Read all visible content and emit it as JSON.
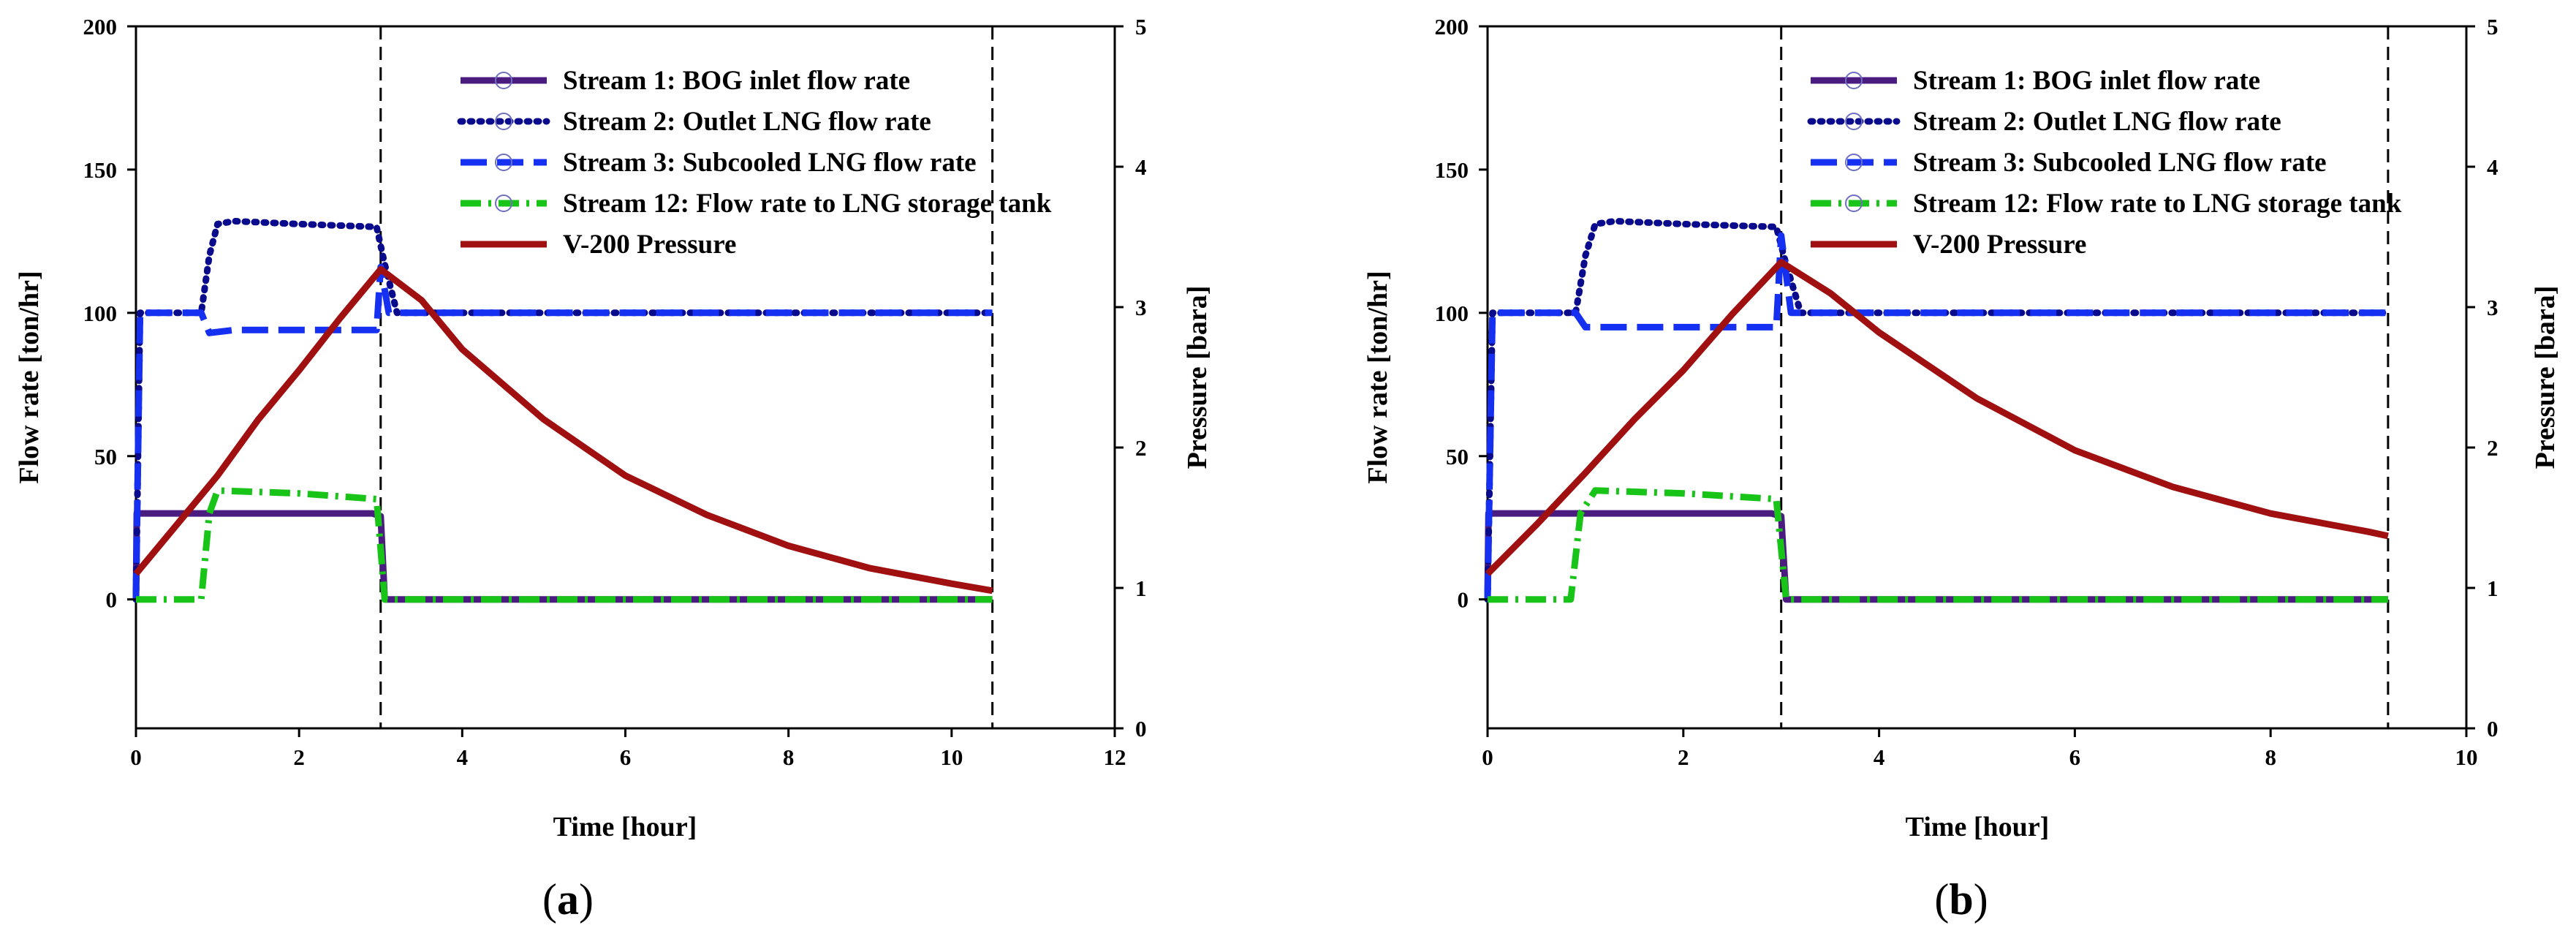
{
  "chart_data": [
    {
      "type": "line",
      "panel": "a",
      "caption": {
        "open": "(",
        "letter": "a",
        "close": ")"
      },
      "xlabel": "Time [hour]",
      "ylabel": "Flow rate [ton/hr]",
      "y2label": "Pressure [bara]",
      "xlim": [
        0,
        12
      ],
      "xticks": [
        0,
        2,
        4,
        6,
        8,
        10,
        12
      ],
      "ylim": [
        -45,
        200
      ],
      "yticks": [
        0,
        50,
        100,
        150,
        200
      ],
      "y2lim": [
        0,
        5
      ],
      "y2ticks": [
        0,
        1,
        2,
        3,
        4,
        5
      ],
      "vlines": [
        3.0,
        10.5
      ],
      "series": [
        {
          "name": "Stream 1: BOG inlet flow rate",
          "color": "#4b1c80",
          "style": "solid",
          "axis": "left",
          "x": [
            0,
            0.01,
            2.9,
            3.0,
            3.05,
            10.5
          ],
          "y": [
            0,
            30,
            30,
            29,
            0,
            0
          ]
        },
        {
          "name": "Stream 2: Outlet LNG flow rate",
          "color": "#0a0a8c",
          "style": "dotted",
          "axis": "left",
          "x": [
            0,
            0.05,
            0.8,
            0.9,
            1.0,
            1.2,
            2.0,
            2.95,
            3.05,
            3.2,
            10.5
          ],
          "y": [
            0,
            100,
            100,
            120,
            131,
            132,
            131,
            130,
            117,
            100,
            100
          ]
        },
        {
          "name": "Stream 3: Subcooled LNG flow rate",
          "color": "#1530f0",
          "style": "dashed",
          "axis": "left",
          "x": [
            0,
            0.05,
            0.8,
            0.9,
            1.2,
            2.95,
            3.0,
            3.1,
            10.5
          ],
          "y": [
            0,
            100,
            100,
            93,
            94,
            94,
            116,
            100,
            100
          ]
        },
        {
          "name": "Stream 12: Flow rate to LNG storage tank",
          "color": "#19c419",
          "style": "dashdot",
          "axis": "left",
          "x": [
            0,
            0.8,
            0.9,
            1.0,
            2.0,
            2.95,
            3.05,
            10.5
          ],
          "y": [
            0,
            0,
            30,
            38,
            37,
            35,
            0,
            0
          ]
        },
        {
          "name": "V-200 Pressure",
          "color": "#a01010",
          "style": "solid",
          "axis": "right",
          "x": [
            0,
            0.5,
            1.0,
            1.5,
            2.0,
            2.5,
            3.0,
            3.5,
            4.0,
            5.0,
            6.0,
            7.0,
            8.0,
            9.0,
            10.0,
            10.5
          ],
          "y": [
            1.1,
            1.45,
            1.8,
            2.2,
            2.55,
            2.92,
            3.27,
            3.05,
            2.7,
            2.2,
            1.8,
            1.52,
            1.3,
            1.14,
            1.03,
            0.98
          ]
        }
      ]
    },
    {
      "type": "line",
      "panel": "b",
      "caption": {
        "open": "(",
        "letter": "b",
        "close": ")"
      },
      "xlabel": "Time [hour]",
      "ylabel": "Flow rate [ton/hr]",
      "y2label": "Pressure [bara]",
      "xlim": [
        0,
        10
      ],
      "xticks": [
        0,
        2,
        4,
        6,
        8,
        10
      ],
      "ylim": [
        -45,
        200
      ],
      "yticks": [
        0,
        50,
        100,
        150,
        200
      ],
      "y2lim": [
        0,
        5
      ],
      "y2ticks": [
        0,
        1,
        2,
        3,
        4,
        5
      ],
      "vlines": [
        3.0,
        9.2
      ],
      "series": [
        {
          "name": "Stream 1: BOG inlet flow rate",
          "color": "#4b1c80",
          "style": "solid",
          "axis": "left",
          "x": [
            0,
            0.01,
            2.9,
            3.0,
            3.05,
            9.2
          ],
          "y": [
            0,
            30,
            30,
            29,
            0,
            0
          ]
        },
        {
          "name": "Stream 2: Outlet LNG flow rate",
          "color": "#0a0a8c",
          "style": "dotted",
          "axis": "left",
          "x": [
            0,
            0.05,
            0.9,
            1.0,
            1.1,
            1.3,
            2.0,
            2.95,
            3.05,
            3.2,
            9.2
          ],
          "y": [
            0,
            100,
            100,
            120,
            131,
            132,
            131,
            130,
            117,
            100,
            100
          ]
        },
        {
          "name": "Stream 3: Subcooled LNG flow rate",
          "color": "#1530f0",
          "style": "dashed",
          "axis": "left",
          "x": [
            0,
            0.05,
            0.9,
            1.0,
            1.3,
            2.95,
            3.0,
            3.1,
            9.2
          ],
          "y": [
            0,
            100,
            100,
            95,
            95,
            95,
            127,
            100,
            100
          ]
        },
        {
          "name": "Stream 12: Flow rate to LNG storage tank",
          "color": "#19c419",
          "style": "dashdot",
          "axis": "left",
          "x": [
            0,
            0.85,
            0.95,
            1.1,
            2.0,
            2.95,
            3.05,
            9.2
          ],
          "y": [
            0,
            0,
            30,
            38,
            37,
            35,
            0,
            0
          ]
        },
        {
          "name": "V-200 Pressure",
          "color": "#a01010",
          "style": "solid",
          "axis": "right",
          "x": [
            0,
            0.5,
            1.0,
            1.5,
            2.0,
            2.5,
            3.0,
            3.5,
            4.0,
            5.0,
            6.0,
            7.0,
            8.0,
            9.0,
            9.2
          ],
          "y": [
            1.1,
            1.45,
            1.82,
            2.2,
            2.55,
            2.95,
            3.32,
            3.1,
            2.82,
            2.35,
            1.98,
            1.72,
            1.53,
            1.4,
            1.37
          ]
        }
      ]
    }
  ]
}
